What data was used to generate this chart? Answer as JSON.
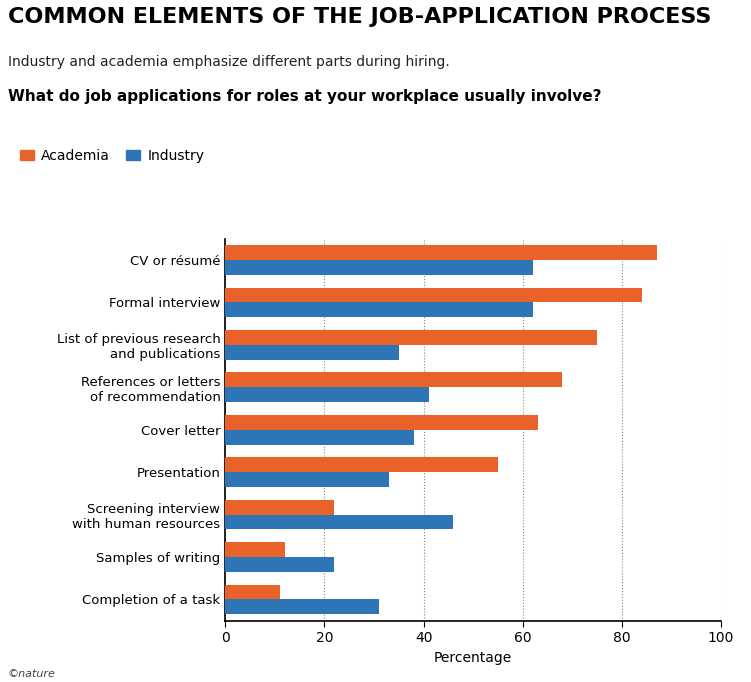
{
  "title": "COMMON ELEMENTS OF THE JOB-APPLICATION PROCESS",
  "subtitle": "Industry and academia emphasize different parts during hiring.",
  "question": "What do job applications for roles at your workplace usually involve?",
  "categories": [
    "CV or résumé",
    "Formal interview",
    "List of previous research\nand publications",
    "References or letters\nof recommendation",
    "Cover letter",
    "Presentation",
    "Screening interview\nwith human resources",
    "Samples of writing",
    "Completion of a task"
  ],
  "academia_values": [
    87,
    84,
    75,
    68,
    63,
    55,
    22,
    12,
    11
  ],
  "industry_values": [
    62,
    62,
    35,
    41,
    38,
    33,
    46,
    22,
    31
  ],
  "academia_color": "#E8622A",
  "industry_color": "#2E75B6",
  "xlim": [
    0,
    100
  ],
  "xticks": [
    0,
    20,
    40,
    60,
    80,
    100
  ],
  "xlabel": "Percentage",
  "legend_labels": [
    "Academia",
    "Industry"
  ],
  "footer": "©nature",
  "title_fontsize": 16,
  "subtitle_fontsize": 10,
  "question_fontsize": 11,
  "bar_height": 0.35,
  "grid_color": "#888888"
}
